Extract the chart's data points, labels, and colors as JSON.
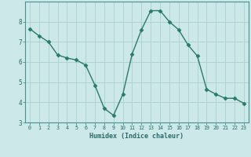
{
  "x": [
    0,
    1,
    2,
    3,
    4,
    5,
    6,
    7,
    8,
    9,
    10,
    11,
    12,
    13,
    14,
    15,
    16,
    17,
    18,
    19,
    20,
    21,
    22,
    23
  ],
  "y": [
    7.65,
    7.3,
    7.0,
    6.35,
    6.2,
    6.1,
    5.85,
    4.85,
    3.7,
    3.35,
    4.4,
    6.4,
    7.6,
    8.55,
    8.55,
    8.0,
    7.6,
    6.85,
    6.3,
    4.65,
    4.4,
    4.2,
    4.2,
    3.95
  ],
  "line_color": "#2a7a6a",
  "marker": "D",
  "marker_size": 2.5,
  "bg_color": "#cce8e8",
  "grid_color": "#aad0d0",
  "xlabel": "Humidex (Indice chaleur)",
  "ylim": [
    3,
    9
  ],
  "xlim": [
    -0.5,
    23.5
  ],
  "yticks": [
    3,
    4,
    5,
    6,
    7,
    8
  ],
  "xticks": [
    0,
    1,
    2,
    3,
    4,
    5,
    6,
    7,
    8,
    9,
    10,
    11,
    12,
    13,
    14,
    15,
    16,
    17,
    18,
    19,
    20,
    21,
    22,
    23
  ],
  "tick_color": "#2a6a6a",
  "spine_color": "#4a9090"
}
